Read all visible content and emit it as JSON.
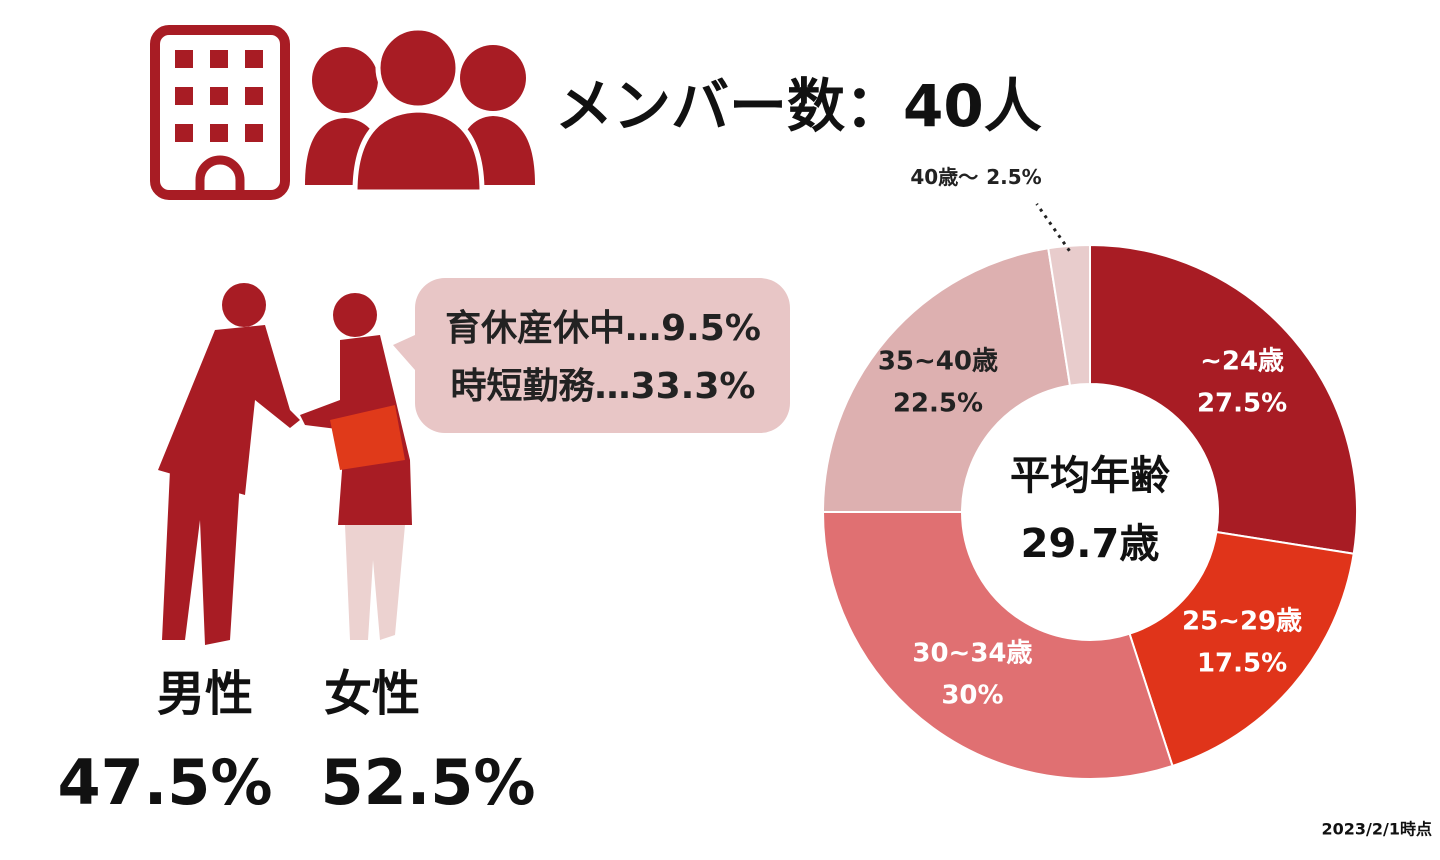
{
  "header": {
    "title": "メンバー数：40人"
  },
  "leave": {
    "lines": [
      "育休産休中…9.5%",
      "時短勤務…33.3%"
    ]
  },
  "gender": {
    "labels": [
      "男性",
      "女性"
    ],
    "values": [
      "47.5%",
      "52.5%"
    ]
  },
  "note": "2023/2/1時点",
  "chart_data": {
    "type": "donut",
    "categories": [
      "~24歳",
      "25~29歳",
      "30~34歳",
      "35~40歳",
      "40歳〜"
    ],
    "values": [
      27.5,
      17.5,
      30,
      22.5,
      2.5
    ],
    "value_labels": [
      "27.5%",
      "17.5%",
      "30%",
      "22.5%",
      "2.5%"
    ],
    "colors": [
      "#a81c24",
      "#e0341a",
      "#e07072",
      "#ddb0b0",
      "#e8cccc"
    ],
    "center_label": [
      "平均年齢",
      "29.7歳"
    ]
  }
}
